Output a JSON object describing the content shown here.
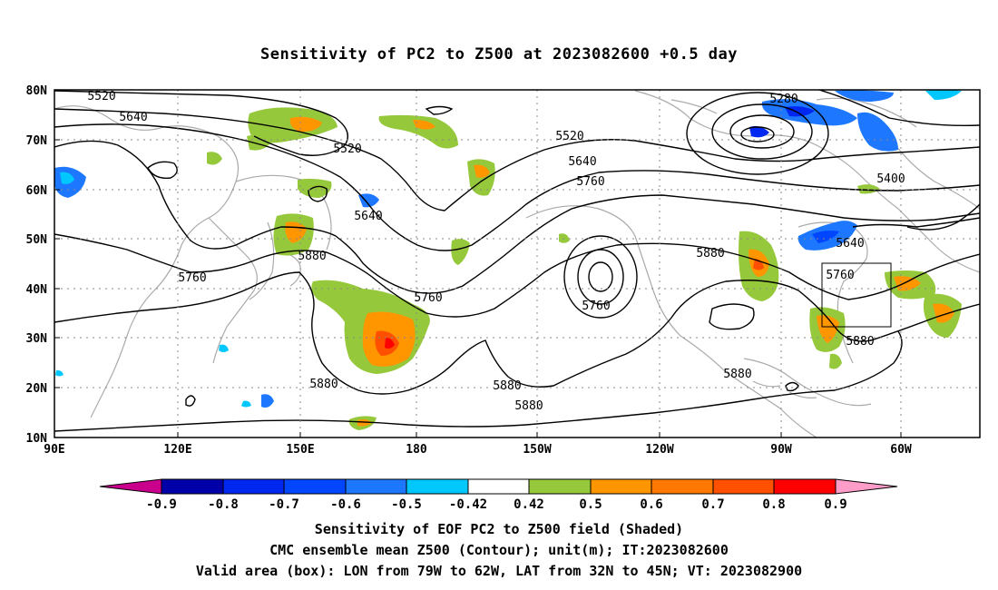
{
  "title": "Sensitivity of PC2 to Z500 at 2023082600 +0.5 day",
  "map": {
    "lat_labels": [
      "80N",
      "70N",
      "60N",
      "50N",
      "40N",
      "30N",
      "20N",
      "10N"
    ],
    "lon_labels": [
      "90E",
      "120E",
      "150E",
      "180",
      "150W",
      "120W",
      "90W",
      "60W"
    ],
    "contour_labels": [
      "5520",
      "5640",
      "5520",
      "5640",
      "5880",
      "5760",
      "5760",
      "5520",
      "5640",
      "5760",
      "5760",
      "5880",
      "5880",
      "5880",
      "5880",
      "5280",
      "5400",
      "5640",
      "5760",
      "5880",
      "5880"
    ],
    "colors": {
      "neg_high": "#c8008c",
      "neg_09": "#0000a8",
      "neg_08": "#0028f0",
      "neg_07": "#0046ff",
      "neg_06": "#1e78ff",
      "neg_05": "#00c8ff",
      "near_zero": "#ffffff",
      "pos_042": "#96c83c",
      "pos_05": "#ff9600",
      "pos_06": "#ff7800",
      "pos_07": "#ff5000",
      "pos_08": "#ff0000",
      "pos_high": "#ff9cc8"
    },
    "valid_box": {
      "lon_west": "79W",
      "lon_east": "62W",
      "lat_south": "32N",
      "lat_north": "45N"
    }
  },
  "colorbar": {
    "tick_labels": [
      "-0.9",
      "-0.8",
      "-0.7",
      "-0.6",
      "-0.5",
      "-0.42",
      "0.42",
      "0.5",
      "0.6",
      "0.7",
      "0.8",
      "0.9"
    ]
  },
  "captions": {
    "line1": "Sensitivity of EOF PC2 to Z500 field (Shaded)",
    "line2": "CMC ensemble mean Z500 (Contour); unit(m); IT:2023082600",
    "line3": "Valid area (box): LON from 79W to 62W, LAT from 32N to 45N; VT: 2023082900"
  }
}
